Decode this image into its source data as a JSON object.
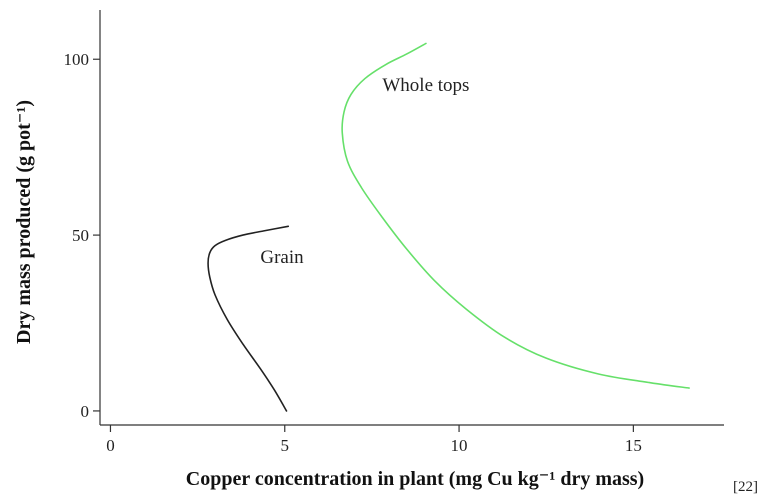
{
  "chart_data": {
    "type": "line",
    "xlabel": "Copper concentration in plant (mg Cu kg⁻¹ dry mass)",
    "ylabel": "Dry mass produced (g pot⁻¹)",
    "xlim": [
      -0.3,
      17.6
    ],
    "ylim": [
      -4,
      114
    ],
    "xticks": [
      0,
      5,
      10,
      15
    ],
    "yticks": [
      0,
      50,
      100
    ],
    "grid": false,
    "series": [
      {
        "name": "Grain",
        "color": "#222222",
        "x": [
          5.05,
          4.7,
          4.3,
          3.8,
          3.35,
          3.0,
          2.85,
          2.8,
          2.85,
          3.0,
          3.3,
          3.8,
          4.4,
          5.1
        ],
        "y": [
          0,
          6,
          12,
          19,
          26,
          33,
          38,
          42,
          45,
          47,
          48.5,
          50,
          51.2,
          52.5
        ]
      },
      {
        "name": "Whole tops",
        "color": "#66e06a",
        "x": [
          16.6,
          15.5,
          14.0,
          12.5,
          11.3,
          10.2,
          9.3,
          8.5,
          7.8,
          7.2,
          6.8,
          6.65,
          6.7,
          6.9,
          7.3,
          7.9,
          8.5,
          9.05
        ],
        "y": [
          6.5,
          8,
          10.5,
          15,
          21,
          29,
          37,
          46,
          55,
          63.5,
          71,
          79,
          85,
          90,
          94.5,
          98.5,
          101.5,
          104.5
        ]
      }
    ],
    "annotations": [
      {
        "text": "Grain",
        "x": 4.3,
        "y": 42
      },
      {
        "text": "Whole tops",
        "x": 7.8,
        "y": 91
      }
    ]
  },
  "reference": "[22]"
}
